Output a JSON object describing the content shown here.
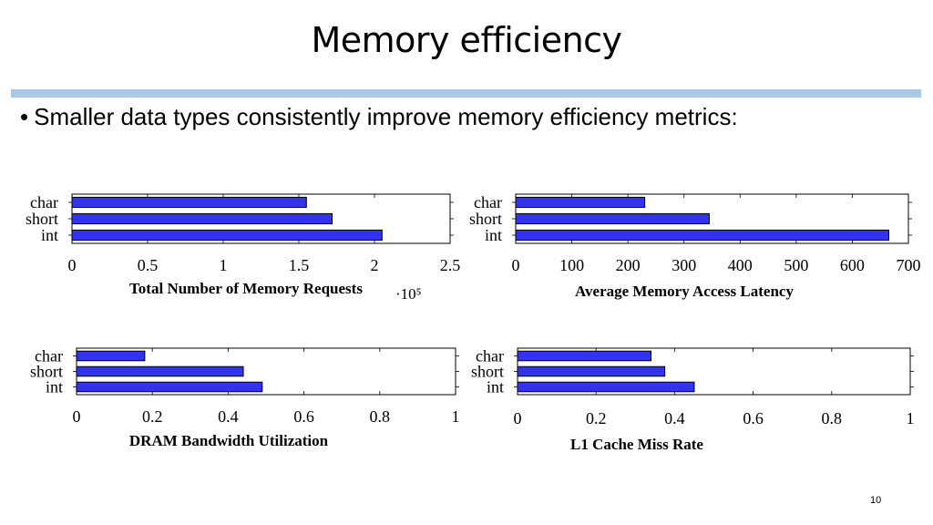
{
  "slide": {
    "title": "Memory efficiency",
    "bullet_marker": "•",
    "bullet_text": "Smaller data types consistently improve memory efficiency metrics:",
    "page_number": "10"
  },
  "colors": {
    "bar_fill": "#3333ee",
    "bar_stroke": "#000000",
    "title_rule": "#a9c7e6"
  },
  "chart_data": [
    {
      "type": "bar",
      "orientation": "horizontal",
      "categories": [
        "char",
        "short",
        "int"
      ],
      "values": [
        1.55,
        1.72,
        2.05
      ],
      "xlabel": "Total Number of Memory Requests",
      "scale_label": "·10⁵",
      "xlim": [
        0,
        2.5
      ],
      "xticks": [
        0,
        0.5,
        1,
        1.5,
        2,
        2.5
      ],
      "xtick_labels": [
        "0",
        "0.5",
        "1",
        "1.5",
        "2",
        "2.5"
      ],
      "grid": false
    },
    {
      "type": "bar",
      "orientation": "horizontal",
      "categories": [
        "char",
        "short",
        "int"
      ],
      "values": [
        230,
        345,
        665
      ],
      "xlabel": "Average Memory Access Latency",
      "xlim": [
        0,
        700
      ],
      "xticks": [
        0,
        100,
        200,
        300,
        400,
        500,
        600,
        700
      ],
      "xtick_labels": [
        "0",
        "100",
        "200",
        "300",
        "400",
        "500",
        "600",
        "700"
      ],
      "grid": false
    },
    {
      "type": "bar",
      "orientation": "horizontal",
      "categories": [
        "char",
        "short",
        "int"
      ],
      "values": [
        0.18,
        0.44,
        0.49
      ],
      "xlabel": "DRAM Bandwidth Utilization",
      "xlim": [
        0,
        1
      ],
      "xticks": [
        0,
        0.2,
        0.4,
        0.6,
        0.8,
        1
      ],
      "xtick_labels": [
        "0",
        "0.2",
        "0.4",
        "0.6",
        "0.8",
        "1"
      ],
      "grid": false
    },
    {
      "type": "bar",
      "orientation": "horizontal",
      "categories": [
        "char",
        "short",
        "int"
      ],
      "values": [
        0.34,
        0.375,
        0.45
      ],
      "xlabel": "L1 Cache Miss Rate",
      "xlim": [
        0,
        1
      ],
      "xticks": [
        0,
        0.2,
        0.4,
        0.6,
        0.8,
        1
      ],
      "xtick_labels": [
        "0",
        "0.2",
        "0.4",
        "0.6",
        "0.8",
        "1"
      ],
      "grid": false
    }
  ]
}
